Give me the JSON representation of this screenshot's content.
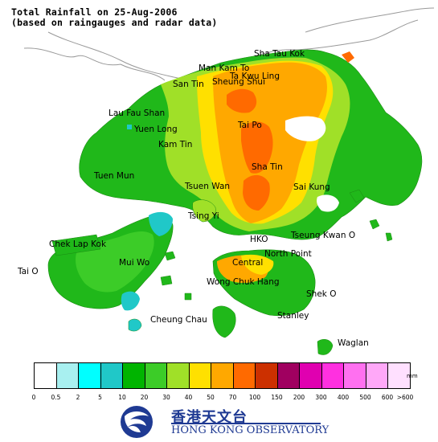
{
  "title": {
    "line1": "Total Rainfall on 25-Aug-2006",
    "line2": "(based on raingauges and radar data)"
  },
  "places": [
    {
      "name": "Sha Tau Kok"
    },
    {
      "name": "Man Kam To"
    },
    {
      "name": "Ta Kwu Ling"
    },
    {
      "name": "San Tin"
    },
    {
      "name": "Sheung Shui"
    },
    {
      "name": "Lau Fau Shan"
    },
    {
      "name": "Yuen Long"
    },
    {
      "name": "Tai Po"
    },
    {
      "name": "Kam Tin"
    },
    {
      "name": "Sha Tin"
    },
    {
      "name": "Tuen Mun"
    },
    {
      "name": "Tsuen Wan"
    },
    {
      "name": "Sai Kung"
    },
    {
      "name": "Tsing Yi"
    },
    {
      "name": "HKO"
    },
    {
      "name": "Tseung Kwan O"
    },
    {
      "name": "Chek Lap Kok"
    },
    {
      "name": "North Point"
    },
    {
      "name": "Mui Wo"
    },
    {
      "name": "Central"
    },
    {
      "name": "Tai O"
    },
    {
      "name": "Wong Chuk Hang"
    },
    {
      "name": "Shek O"
    },
    {
      "name": "Stanley"
    },
    {
      "name": "Cheung Chau"
    },
    {
      "name": "Waglan"
    }
  ],
  "legend": {
    "unit": "mm",
    "colors": [
      "#ffffff",
      "#a8f0f0",
      "#00ffff",
      "#20c8c8",
      "#00b400",
      "#3ccc28",
      "#a0e028",
      "#ffe000",
      "#ffa800",
      "#ff6a00",
      "#cc3000",
      "#a00060",
      "#e000b0",
      "#ff30e0",
      "#ff70f0",
      "#ffa8f8",
      "#ffe0ff"
    ],
    "labels": [
      "0",
      "0.5",
      "2",
      "5",
      "10",
      "20",
      "30",
      "40",
      "50",
      "70",
      "100",
      "150",
      "200",
      "300",
      "400",
      "500",
      "600",
      ">600"
    ]
  },
  "logo": {
    "name_zh": "香港天文台",
    "name_en": "HONG KONG OBSERVATORY"
  }
}
